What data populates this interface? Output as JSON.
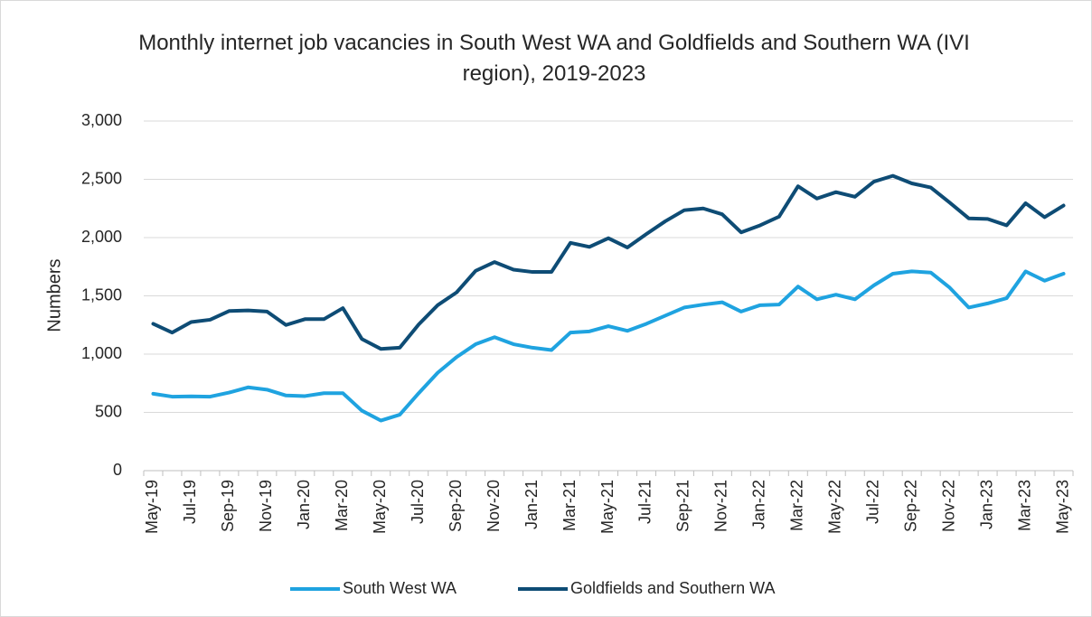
{
  "chart_data": {
    "type": "line",
    "title": "Monthly internet job vacancies in South West WA and Goldfields and Southern WA (IVI region), 2019-2023",
    "ylabel": "Numbers",
    "categories": [
      "May-19",
      null,
      "Jul-19",
      null,
      "Sep-19",
      null,
      "Nov-19",
      null,
      "Jan-20",
      null,
      "Mar-20",
      null,
      "May-20",
      null,
      "Jul-20",
      null,
      "Sep-20",
      null,
      "Nov-20",
      null,
      "Jan-21",
      null,
      "Mar-21",
      null,
      "May-21",
      null,
      "Jul-21",
      null,
      "Sep-21",
      null,
      "Nov-21",
      null,
      "Jan-22",
      null,
      "Mar-22",
      null,
      "May-22",
      null,
      "Jul-22",
      null,
      "Sep-22",
      null,
      "Nov-22",
      null,
      "Jan-23",
      null,
      "Mar-23",
      null,
      "May-23"
    ],
    "series": [
      {
        "name": "South West WA",
        "color": "#1fa3e0",
        "values": [
          660,
          635,
          638,
          635,
          670,
          715,
          695,
          645,
          640,
          665,
          665,
          515,
          430,
          480,
          665,
          840,
          975,
          1085,
          1145,
          1085,
          1055,
          1035,
          1185,
          1195,
          1240,
          1200,
          1260,
          1330,
          1400,
          1425,
          1445,
          1365,
          1420,
          1425,
          1580,
          1470,
          1510,
          1470,
          1590,
          1690,
          1710,
          1700,
          1570,
          1400,
          1435,
          1480,
          1710,
          1630,
          1690
        ]
      },
      {
        "name": "Goldfields and Southern WA",
        "color": "#0e4c75",
        "values": [
          1260,
          1185,
          1275,
          1295,
          1370,
          1375,
          1365,
          1250,
          1300,
          1300,
          1395,
          1130,
          1045,
          1055,
          1255,
          1420,
          1530,
          1715,
          1790,
          1725,
          1705,
          1705,
          1955,
          1920,
          1995,
          1915,
          2030,
          2140,
          2235,
          2250,
          2200,
          2045,
          2105,
          2180,
          2440,
          2335,
          2390,
          2350,
          2480,
          2530,
          2465,
          2430,
          2300,
          2165,
          2160,
          2105,
          2295,
          2175,
          2275
        ]
      }
    ],
    "ylim": [
      0,
      3000
    ],
    "yticks": [
      0,
      500,
      {
        "value": 1000,
        "label": "1,000"
      },
      {
        "value": 1500,
        "label": "1,500"
      },
      {
        "value": 2000,
        "label": "2,000"
      },
      {
        "value": 2500,
        "label": "2,500"
      },
      {
        "value": 3000,
        "label": "3,000"
      }
    ],
    "grid": true,
    "legend": "bottom"
  }
}
